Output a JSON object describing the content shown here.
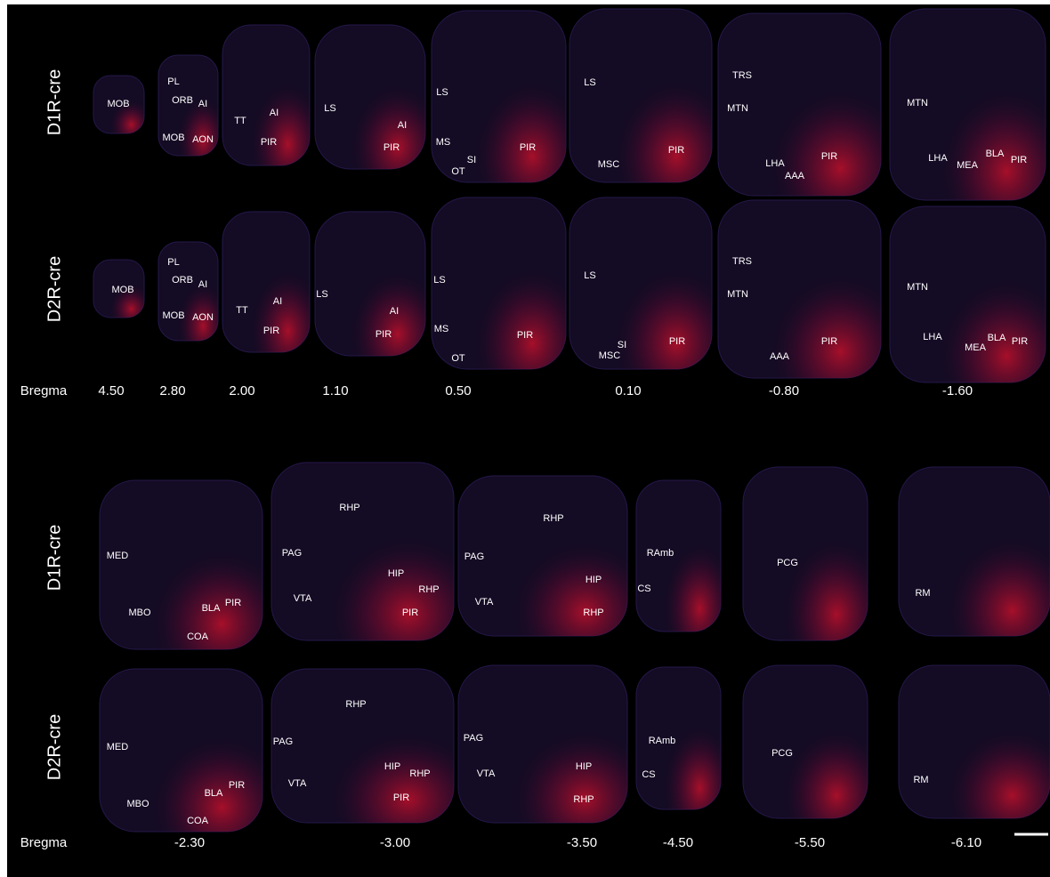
{
  "panels": [
    {
      "rows": [
        {
          "label": "D1R-cre",
          "regions": [
            "MOB",
            "PL",
            "ORB",
            "AI",
            "MOB",
            "AON",
            "TT",
            "AI",
            "PIR",
            "LS",
            "AI",
            "PIR",
            "LS",
            "MS",
            "SI",
            "OT",
            "PIR",
            "LS",
            "MSC",
            "PIR",
            "TRS",
            "MTN",
            "LHA",
            "AAA",
            "PIR",
            "MTN",
            "LHA",
            "MEA",
            "BLA",
            "PIR"
          ]
        },
        {
          "label": "D2R-cre",
          "regions": [
            "MOB",
            "PL",
            "ORB",
            "AI",
            "MOB",
            "AON",
            "TT",
            "AI",
            "PIR",
            "LS",
            "AI",
            "PIR",
            "LS",
            "MS",
            "OT",
            "PIR",
            "LS",
            "SI",
            "MSC",
            "PIR",
            "TRS",
            "MTN",
            "AAA",
            "PIR",
            "MTN",
            "LHA",
            "MEA",
            "BLA",
            "PIR"
          ]
        }
      ],
      "bregma_label": "Bregma",
      "bregma": [
        "4.50",
        "2.80",
        "2.00",
        "1.10",
        "0.50",
        "0.10",
        "-0.80",
        "-1.60"
      ]
    },
    {
      "rows": [
        {
          "label": "D1R-cre",
          "regions": [
            "MED",
            "MBO",
            "BLA",
            "PIR",
            "COA",
            "RHP",
            "PAG",
            "HIP",
            "RHP",
            "VTA",
            "PIR",
            "RHP",
            "PAG",
            "HIP",
            "VTA",
            "RHP",
            "RAmb",
            "CS",
            "PCG",
            "RM"
          ]
        },
        {
          "label": "D2R-cre",
          "regions": [
            "MED",
            "MBO",
            "BLA",
            "PIR",
            "COA",
            "RHP",
            "PAG",
            "HIP",
            "RHP",
            "VTA",
            "PIR",
            "PAG",
            "HIP",
            "VTA",
            "RHP",
            "RAmb",
            "CS",
            "PCG",
            "RM"
          ]
        }
      ],
      "bregma_label": "Bregma",
      "bregma": [
        "-2.30",
        "-3.00",
        "-3.50",
        "-4.50",
        "-5.50",
        "-6.10"
      ]
    }
  ]
}
